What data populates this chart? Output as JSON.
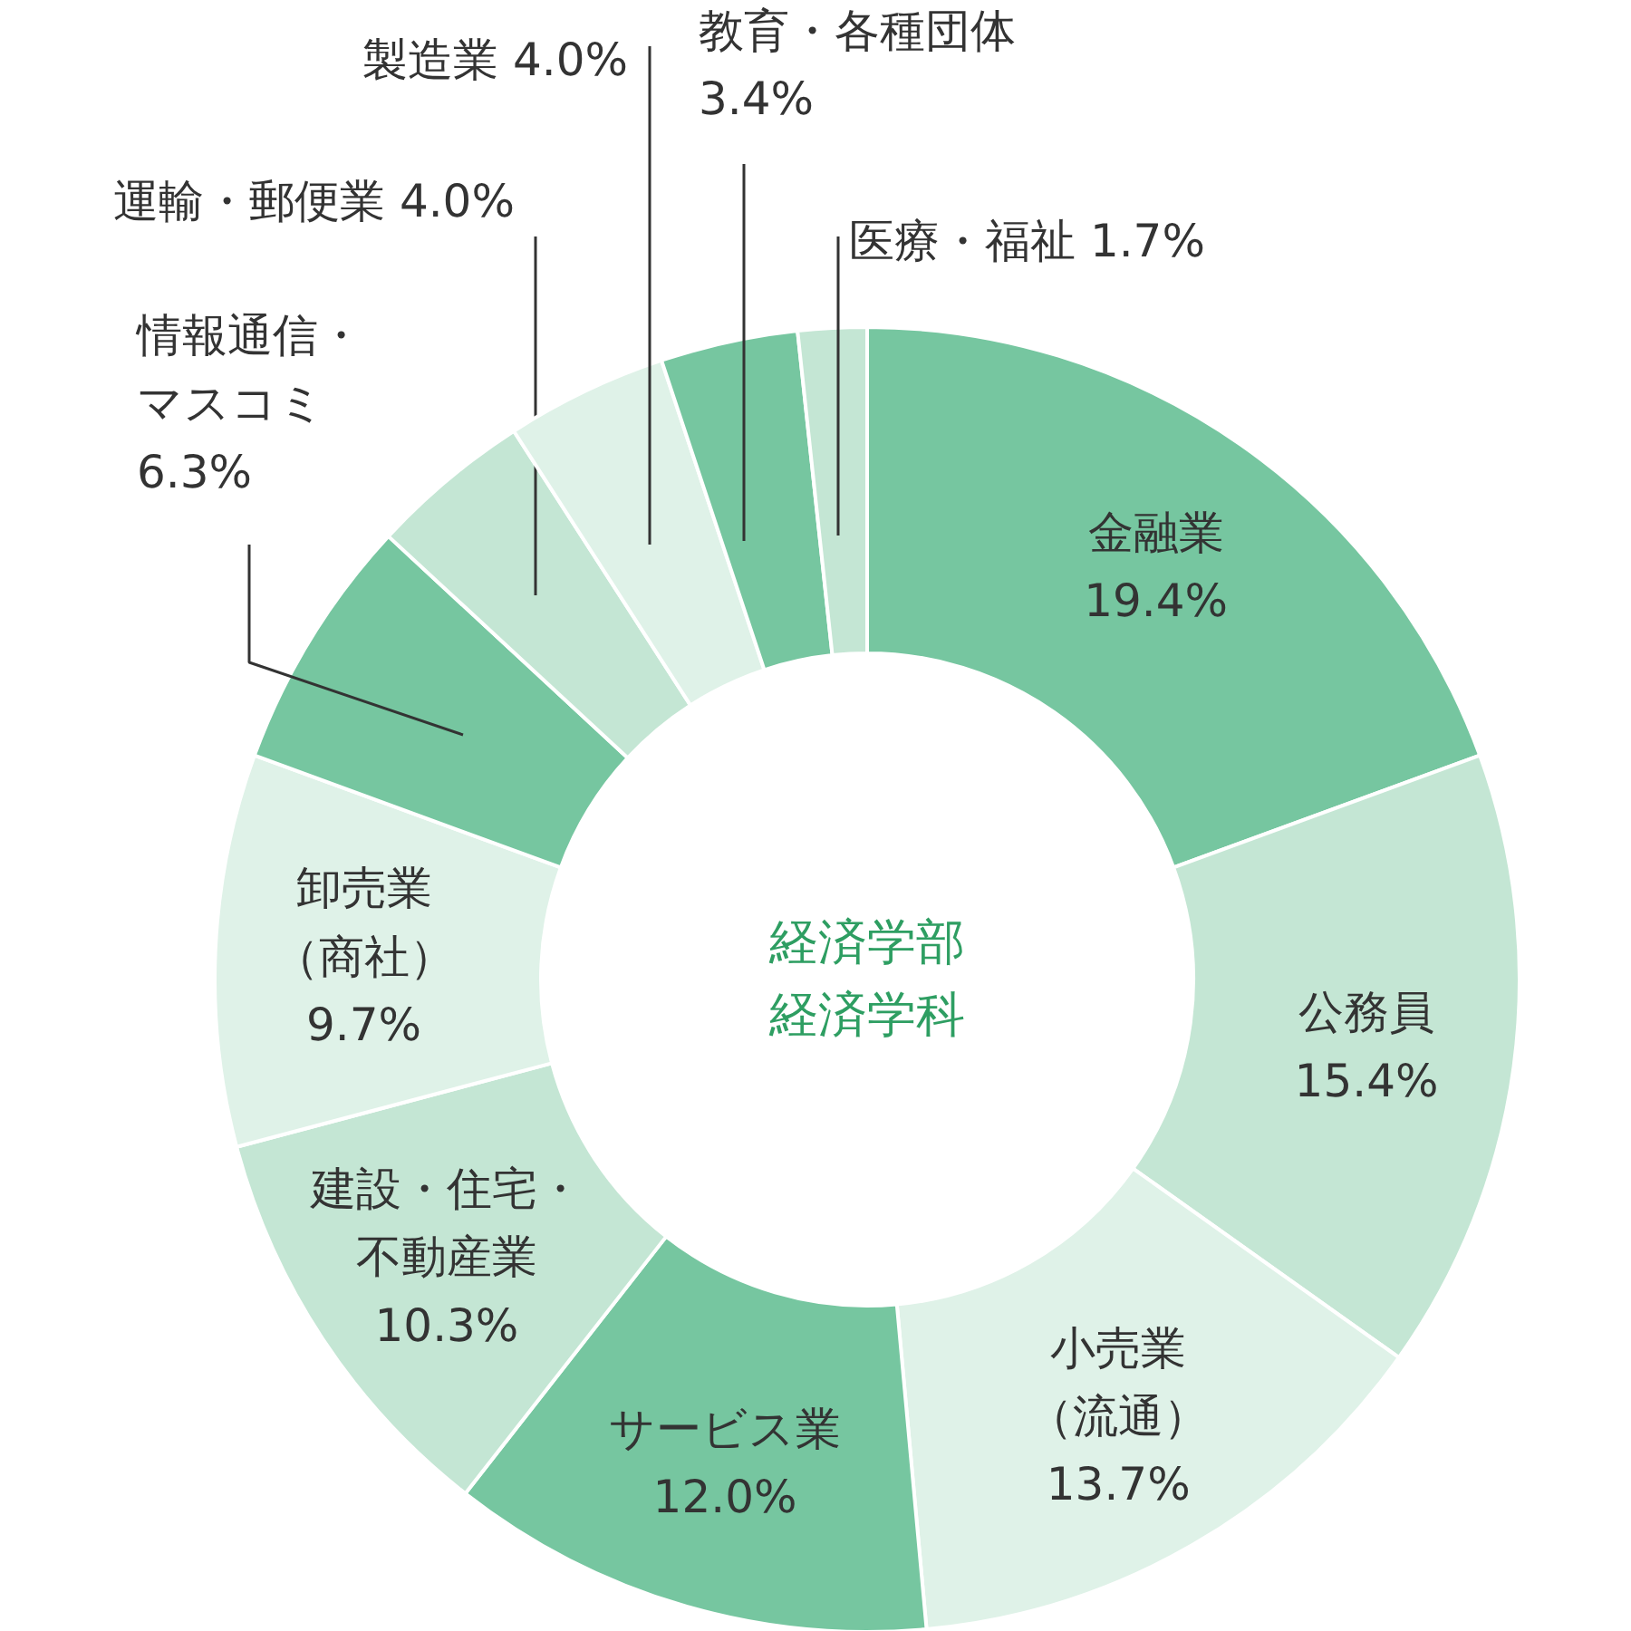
{
  "chart_data": {
    "type": "donut",
    "title": "経済学部経済学科",
    "categories": [
      "金融業",
      "公務員",
      "小売業（流通）",
      "サービス業",
      "建設・住宅・不動産業",
      "卸売業（商社）",
      "情報通信・マスコミ",
      "運輸・郵便業",
      "製造業",
      "教育・各種団体",
      "医療・福祉"
    ],
    "values": [
      19.4,
      15.4,
      13.7,
      12.0,
      10.3,
      9.7,
      6.3,
      4.0,
      4.0,
      3.4,
      1.7
    ],
    "value_labels": [
      "19.4%",
      "15.4%",
      "13.7%",
      "12.0%",
      "10.3%",
      "9.7%",
      "6.3%",
      "4.0%",
      "4.0%",
      "3.4%",
      "1.7%"
    ],
    "colors": [
      "#76c6a0",
      "#c4e6d4",
      "#dff2e8",
      "#76c6a0",
      "#c4e6d4",
      "#dff2e8",
      "#76c6a0",
      "#c4e6d4",
      "#dff2e8",
      "#76c6a0",
      "#c4e6d4"
    ]
  }
}
